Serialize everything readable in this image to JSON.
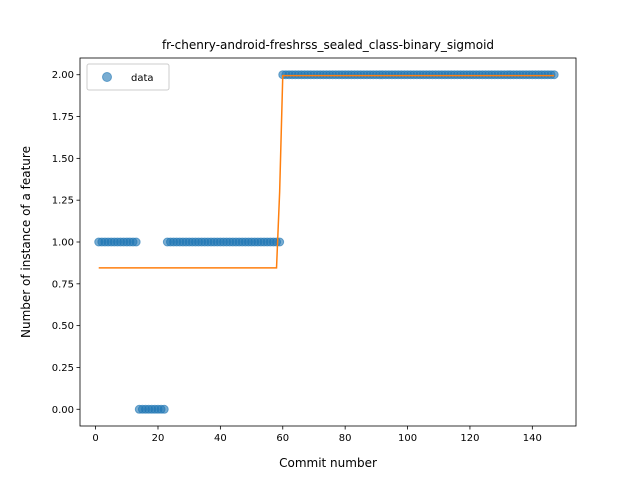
{
  "chart_data": {
    "type": "scatter",
    "title": "fr-chenry-android-freshrss_sealed_class-binary_sigmoid",
    "xlabel": "Commit number",
    "ylabel": "Number of instance of a feature",
    "xlim": [
      -5,
      154
    ],
    "ylim": [
      -0.1,
      2.1
    ],
    "xticks": [
      0,
      20,
      40,
      60,
      80,
      100,
      120,
      140
    ],
    "yticks": [
      0.0,
      0.25,
      0.5,
      0.75,
      1.0,
      1.25,
      1.5,
      1.75,
      2.0
    ],
    "ytick_labels": [
      "0.00",
      "0.25",
      "0.50",
      "0.75",
      "1.00",
      "1.25",
      "1.50",
      "1.75",
      "2.00"
    ],
    "legend": {
      "position": "top-left",
      "entries": [
        "data"
      ]
    },
    "colors": {
      "data": "#1f77b4",
      "fit": "#ff7f0e"
    },
    "series": [
      {
        "name": "data",
        "kind": "points",
        "segments": [
          {
            "x_from": 1,
            "x_to": 13,
            "y": 1
          },
          {
            "x_from": 14,
            "x_to": 22,
            "y": 0
          },
          {
            "x_from": 23,
            "x_to": 59,
            "y": 1
          },
          {
            "x_from": 60,
            "x_to": 147,
            "y": 2
          }
        ]
      },
      {
        "kind": "line",
        "points": [
          [
            1,
            0.845
          ],
          [
            58,
            0.845
          ],
          [
            59,
            1.3
          ],
          [
            60,
            1.995
          ],
          [
            147,
            1.995
          ]
        ]
      }
    ]
  }
}
